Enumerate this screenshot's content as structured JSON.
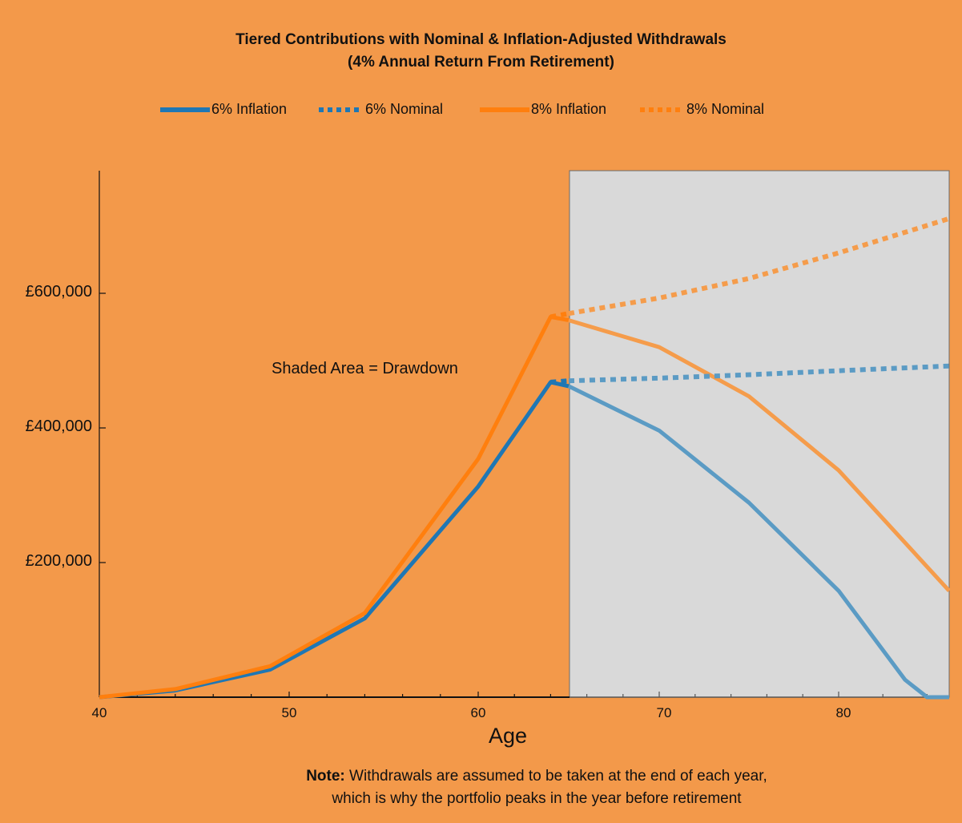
{
  "chart_data": {
    "type": "line",
    "title": "Tiered Contributions with Nominal & Inflation-Adjusted Withdrawals",
    "subtitle": "(4% Annual Return From Retirement)",
    "xlabel": "Age",
    "ylabel": "",
    "xlim": [
      40,
      85
    ],
    "ylim": [
      0,
      780000
    ],
    "x_ticks": [
      40,
      50,
      60,
      70,
      80
    ],
    "y_ticks": [
      200000,
      400000,
      600000
    ],
    "y_tick_labels": [
      "£200,000",
      "£400,000",
      "£600,000"
    ],
    "grid": false,
    "legend_position": "top",
    "shaded_region": {
      "x_start": 65,
      "x_end": 85,
      "label": "Shaded Area = Drawdown",
      "color": "#d9d9d9"
    },
    "series": [
      {
        "name": "6% Inflation",
        "color": "#1f77b4",
        "drawdown_color": "#5b9bc4",
        "style": "solid",
        "x": [
          40,
          44,
          49,
          54,
          60,
          64,
          65,
          70,
          75,
          80,
          83,
          84,
          85
        ],
        "values": [
          0,
          10000,
          41000,
          117000,
          313000,
          468000,
          462000,
          396000,
          289000,
          158000,
          26000,
          0,
          0
        ]
      },
      {
        "name": "6% Nominal",
        "color": "#1f77b4",
        "drawdown_color": "#5b9bc4",
        "style": "dotted",
        "x": [
          64,
          65,
          70,
          75,
          80,
          85
        ],
        "values": [
          468000,
          470000,
          474000,
          479000,
          485000,
          492000
        ]
      },
      {
        "name": "8% Inflation",
        "color": "#ff7f0e",
        "drawdown_color": "#f59c4b",
        "style": "solid",
        "x": [
          40,
          44,
          49,
          54,
          60,
          64,
          65,
          70,
          75,
          80,
          85
        ],
        "values": [
          0,
          12000,
          46000,
          125000,
          354000,
          565000,
          560000,
          520000,
          447000,
          337000,
          158000
        ]
      },
      {
        "name": "8% Nominal",
        "color": "#ff7f0e",
        "drawdown_color": "#f59c4b",
        "style": "dotted",
        "x": [
          64,
          65,
          70,
          75,
          80,
          85
        ],
        "values": [
          565000,
          570000,
          593000,
          622000,
          660000,
          711000
        ]
      }
    ],
    "annotations": [
      "Shaded Area = Drawdown"
    ],
    "note": {
      "bold": "Note:",
      "line1": "Withdrawals are assumed to be taken at the end of each year,",
      "line2": "which is why the portfolio peaks in the year before retirement"
    }
  },
  "title": {
    "line1": "Tiered Contributions with Nominal & Inflation-Adjusted Withdrawals",
    "line2": "(4% Annual Return From Retirement)"
  },
  "legend": [
    {
      "label": "6% Inflation",
      "color": "#1f77b4",
      "style": "solid"
    },
    {
      "label": "6% Nominal",
      "color": "#1f77b4",
      "style": "dotted"
    },
    {
      "label": "8% Inflation",
      "color": "#ff7f0e",
      "style": "solid"
    },
    {
      "label": "8% Nominal",
      "color": "#ff7f0e",
      "style": "dotted"
    }
  ],
  "axes": {
    "x_title": "Age",
    "x_ticks": [
      "40",
      "50",
      "60",
      "70",
      "80"
    ],
    "y_ticks": [
      "£600,000",
      "£400,000",
      "£200,000"
    ]
  },
  "annotation": "Shaded Area = Drawdown",
  "note": {
    "bold": "Note:",
    "line1": " Withdrawals are assumed to be taken at the end of each year,",
    "line2": "which is why the portfolio peaks in the year before retirement"
  },
  "colors": {
    "background": "#f3994a",
    "shade": "#d9d9d9",
    "blue": "#1f77b4",
    "orange": "#ff7f0e"
  }
}
